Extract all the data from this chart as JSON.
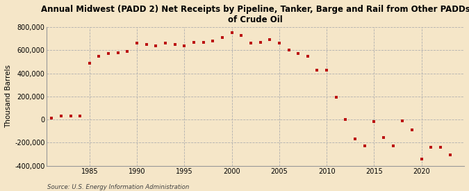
{
  "title": "Annual Midwest (PADD 2) Net Receipts by Pipeline, Tanker, Barge and Rail from Other PADDs\nof Crude Oil",
  "ylabel": "Thousand Barrels",
  "source": "Source: U.S. Energy Information Administration",
  "background_color": "#f5e6c8",
  "marker_color": "#bb1111",
  "years": [
    1981,
    1982,
    1983,
    1984,
    1985,
    1986,
    1987,
    1988,
    1989,
    1990,
    1991,
    1992,
    1993,
    1994,
    1995,
    1996,
    1997,
    1998,
    1999,
    2000,
    2001,
    2002,
    2003,
    2004,
    2005,
    2006,
    2007,
    2008,
    2009,
    2010,
    2011,
    2012,
    2013,
    2014,
    2015,
    2016,
    2017,
    2018,
    2019,
    2020,
    2021,
    2022,
    2023
  ],
  "values": [
    10000,
    30000,
    30000,
    30000,
    490000,
    550000,
    570000,
    580000,
    590000,
    660000,
    650000,
    635000,
    660000,
    650000,
    640000,
    670000,
    670000,
    680000,
    710000,
    750000,
    730000,
    660000,
    670000,
    690000,
    660000,
    600000,
    570000,
    550000,
    430000,
    430000,
    195000,
    0,
    -165000,
    -230000,
    -20000,
    -155000,
    -230000,
    -10000,
    -90000,
    -340000,
    -240000,
    -240000,
    -305000
  ],
  "ylim": [
    -400000,
    800000
  ],
  "yticks": [
    -400000,
    -200000,
    0,
    200000,
    400000,
    600000,
    800000
  ],
  "xticks": [
    1985,
    1990,
    1995,
    2000,
    2005,
    2010,
    2015,
    2020
  ],
  "xlim": [
    1980.5,
    2024.5
  ]
}
